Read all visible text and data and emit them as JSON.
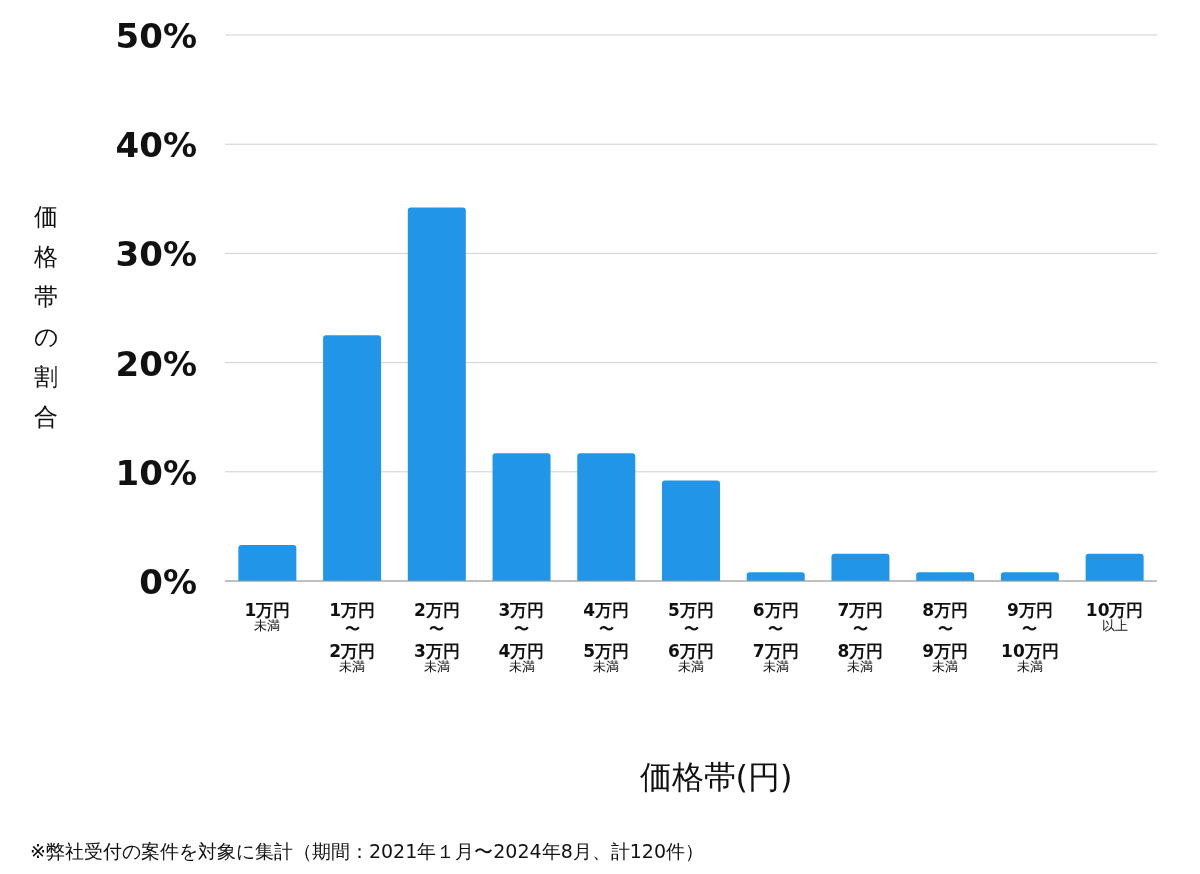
{
  "chart_data": {
    "type": "bar",
    "xlabel": "価格帯(円)",
    "ylabel": "価格帯の割合",
    "categories": [
      "1万円未満",
      "1万円〜2万円未満",
      "2万円〜3万円未満",
      "3万円〜4万円未満",
      "4万円〜5万円未満",
      "5万円〜6万円未満",
      "6万円〜7万円未満",
      "7万円〜8万円未満",
      "8万円〜9万円未満",
      "9万円〜10万円未満",
      "10万円以上"
    ],
    "values": [
      3.3,
      22.5,
      34.2,
      11.7,
      11.7,
      9.2,
      0.8,
      2.5,
      0.8,
      0.8,
      2.5
    ],
    "color": "#2196e8",
    "ylim": [
      0,
      50
    ],
    "yticks": [
      {
        "value": 0,
        "label": "0%"
      },
      {
        "value": 10,
        "label": "10%"
      },
      {
        "value": 20,
        "label": "20%"
      },
      {
        "value": 30,
        "label": "30%"
      },
      {
        "value": 40,
        "label": "40%"
      },
      {
        "value": 50,
        "label": "50%"
      }
    ],
    "grid": "y",
    "annotations": [
      "※弊社受付の案件を対象に集計（期間：2021年１月〜2024年8月、計120件）"
    ]
  }
}
